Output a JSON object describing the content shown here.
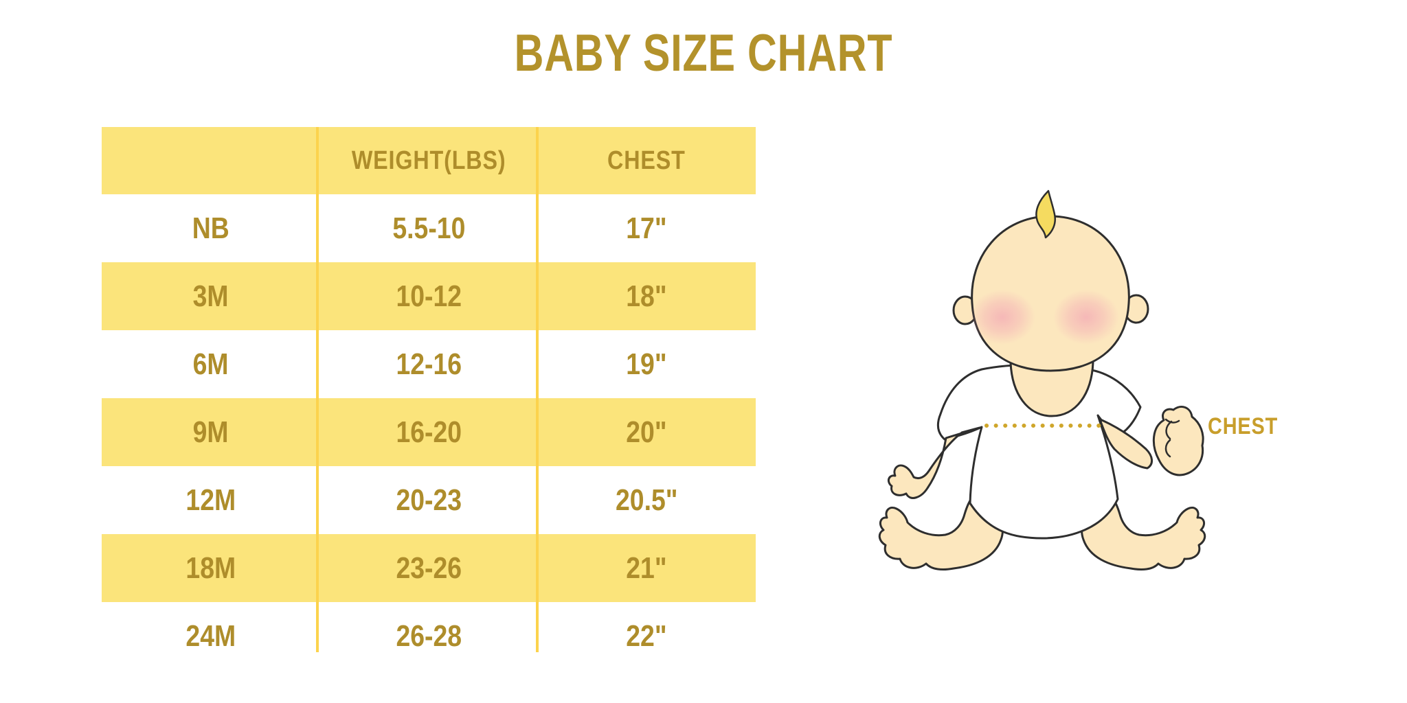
{
  "title": "BABY SIZE CHART",
  "table": {
    "headers": [
      "",
      "WEIGHT(LBS)",
      "CHEST"
    ]
  },
  "diagram": {
    "chest_label": "CHEST"
  },
  "chart_data": {
    "type": "table",
    "title": "BABY SIZE CHART",
    "columns": [
      "",
      "WEIGHT(LBS)",
      "CHEST"
    ],
    "rows": [
      [
        "NB",
        "5.5-10",
        "17\""
      ],
      [
        "3M",
        "10-12",
        "18\""
      ],
      [
        "6M",
        "12-16",
        "19\""
      ],
      [
        "9M",
        "16-20",
        "20\""
      ],
      [
        "12M",
        "20-23",
        "20.5\""
      ],
      [
        "18M",
        "23-26",
        "21\""
      ],
      [
        "24M",
        "26-28",
        "22\""
      ]
    ]
  },
  "colors": {
    "title_gold": "#B3922B",
    "table_text_gold": "#AE8D2B",
    "row_yellow": "#FBE47B",
    "divider_yellow": "#FCD34D",
    "dot_gold": "#CFA62B",
    "chest_label_gold": "#C89E2B",
    "baby_skin": "#FCE7BE",
    "baby_outline": "#2E2E2E",
    "hair_yellow": "#F5DB60",
    "blush_pink": "#F29FB4",
    "background": "#FFFFFF"
  }
}
